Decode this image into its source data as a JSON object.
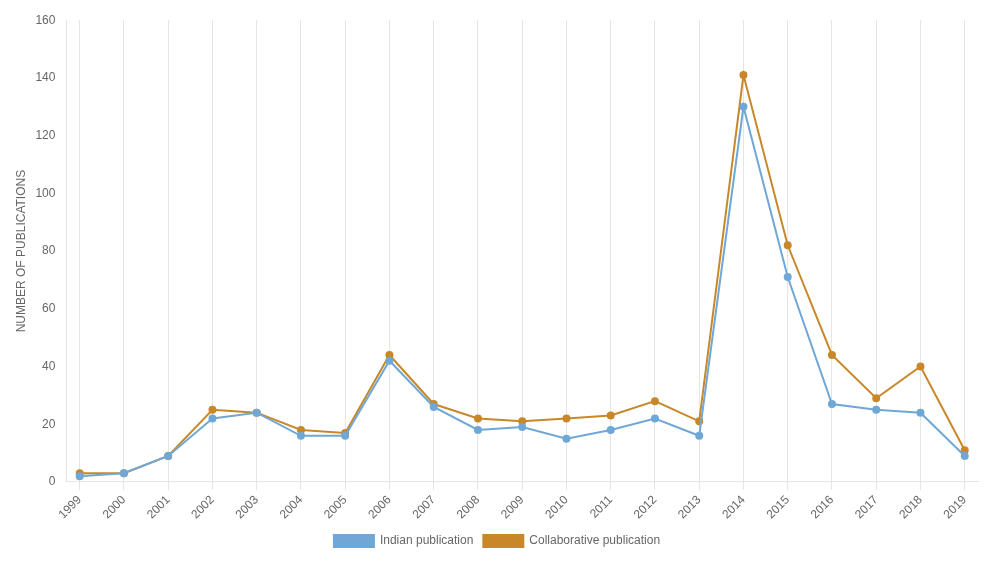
{
  "chart_data": {
    "type": "line",
    "x": [
      1999,
      2000,
      2001,
      2002,
      2003,
      2004,
      2005,
      2006,
      2007,
      2008,
      2009,
      2010,
      2011,
      2012,
      2013,
      2014,
      2015,
      2016,
      2017,
      2018,
      2019
    ],
    "series": [
      {
        "name": "Indian publication",
        "color": "#6fa8d6",
        "values": [
          2,
          3,
          9,
          22,
          24,
          16,
          16,
          42,
          26,
          18,
          19,
          15,
          18,
          22,
          16,
          130,
          71,
          27,
          25,
          24,
          9
        ]
      },
      {
        "name": "Collaborative publication",
        "color": "#c8882a",
        "values": [
          3,
          3,
          9,
          25,
          24,
          18,
          17,
          44,
          27,
          22,
          21,
          22,
          23,
          28,
          21,
          141,
          82,
          44,
          29,
          40,
          11
        ]
      }
    ],
    "ylabel": "NUMBER OF PUBLICATIONS",
    "xlim": [
      1998.7,
      2019.3
    ],
    "xticks": [
      1999,
      2000,
      2001,
      2002,
      2003,
      2004,
      2005,
      2006,
      2007,
      2008,
      2009,
      2010,
      2011,
      2012,
      2013,
      2014,
      2015,
      2016,
      2017,
      2018,
      2019
    ],
    "ylim": [
      0,
      160
    ],
    "yticks": [
      0,
      20,
      40,
      60,
      80,
      100,
      120,
      140,
      160
    ],
    "grid": "x",
    "legend": "bottom",
    "marker": "circle"
  }
}
